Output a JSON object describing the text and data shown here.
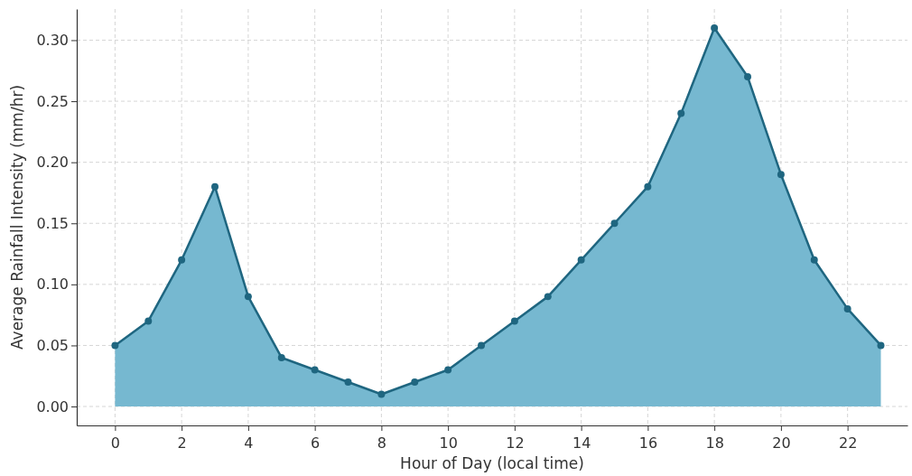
{
  "chart_data": {
    "type": "area",
    "xlabel": "Hour of Day (local time)",
    "ylabel": "Average Rainfall Intensity (mm/hr)",
    "x": [
      0,
      1,
      2,
      3,
      4,
      5,
      6,
      7,
      8,
      9,
      10,
      11,
      12,
      13,
      14,
      15,
      16,
      17,
      18,
      19,
      20,
      21,
      22,
      23
    ],
    "series": [
      {
        "color": "#1f6680",
        "values": [
          0.05,
          0.07,
          0.12,
          0.18,
          0.09,
          0.04,
          0.03,
          0.02,
          0.01,
          0.02,
          0.03,
          0.05,
          0.07,
          0.09,
          0.12,
          0.15,
          0.18,
          0.24,
          0.31,
          0.27,
          0.19,
          0.12,
          0.08,
          0.05
        ]
      }
    ],
    "xlim": [
      -1.15,
      23.8
    ],
    "xticks": [
      0,
      2,
      4,
      6,
      8,
      10,
      12,
      14,
      16,
      18,
      20,
      22
    ],
    "ylim": [
      -0.0155,
      0.3255
    ],
    "yticks": [
      {
        "value": 0,
        "label": "0.00"
      },
      {
        "value": 0.05,
        "label": "0.05"
      },
      {
        "value": 0.1,
        "label": "0.10"
      },
      {
        "value": 0.15,
        "label": "0.15"
      },
      {
        "value": 0.2,
        "label": "0.20"
      },
      {
        "value": 0.25,
        "label": "0.25"
      },
      {
        "value": 0.3,
        "label": "0.30"
      }
    ],
    "grid": true,
    "marker": "circle",
    "line_style": "solid"
  }
}
